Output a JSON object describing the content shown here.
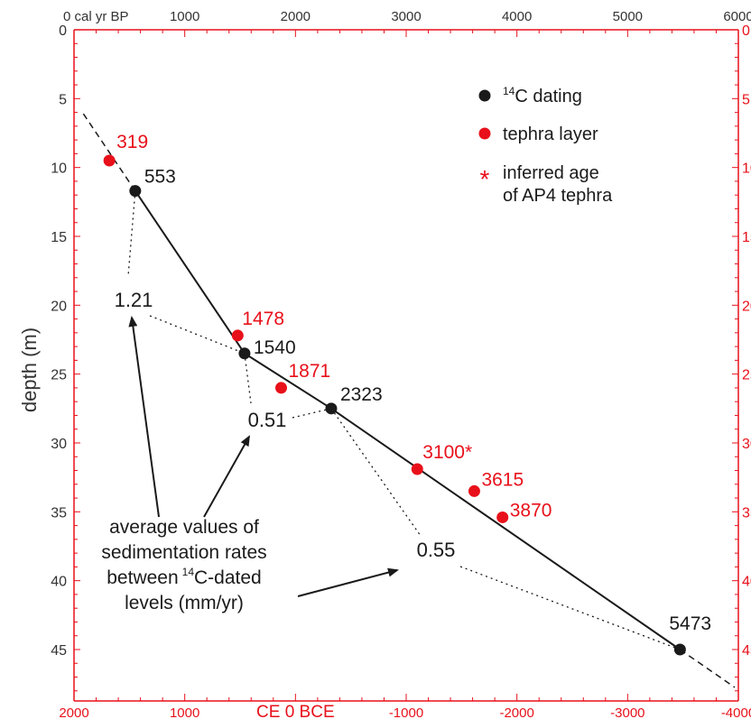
{
  "colors": {
    "black": "#1a1a1a",
    "red": "#e8101a"
  },
  "chart_data": {
    "type": "scatter",
    "y_axis": {
      "label": "depth (m)",
      "range": [
        0,
        48
      ],
      "ticks": [
        0,
        5,
        10,
        15,
        20,
        25,
        30,
        35,
        40,
        45
      ],
      "inverted": true
    },
    "x_top_axis": {
      "range": [
        0,
        6000
      ],
      "ticks": [
        0,
        1000,
        2000,
        3000,
        4000,
        5000,
        6000
      ],
      "tick_labels": [
        "0 cal yr BP",
        "1000",
        "2000",
        "3000",
        "4000",
        "5000",
        "6000"
      ]
    },
    "x_bottom_axis": {
      "range": [
        2000,
        -4000
      ],
      "ticks": [
        2000,
        1000,
        0,
        -1000,
        -2000,
        -3000,
        -4000
      ],
      "tick_labels": [
        "2000",
        "1000",
        "CE 0 BCE",
        "-1000",
        "-2000",
        "-3000",
        "-4000"
      ]
    },
    "series": [
      {
        "name": "14C dating",
        "color": "#1a1a1a",
        "points": [
          {
            "x": 553,
            "y": 11.7,
            "label": "553"
          },
          {
            "x": 1540,
            "y": 23.5,
            "label": "1540"
          },
          {
            "x": 2323,
            "y": 27.5,
            "label": "2323"
          },
          {
            "x": 5473,
            "y": 45.0,
            "label": "5473"
          }
        ]
      },
      {
        "name": "tephra layer",
        "color": "#e8101a",
        "points": [
          {
            "x": 319,
            "y": 9.5,
            "label": "319"
          },
          {
            "x": 1478,
            "y": 22.2,
            "label": "1478"
          },
          {
            "x": 1871,
            "y": 26.0,
            "label": "1871"
          },
          {
            "x": 3100,
            "y": 31.9,
            "label": "3100*"
          },
          {
            "x": 3615,
            "y": 33.5,
            "label": "3615"
          },
          {
            "x": 3870,
            "y": 35.4,
            "label": "3870"
          }
        ]
      }
    ],
    "sedimentation_rates": [
      "1.21",
      "0.51",
      "0.55"
    ],
    "legend": {
      "position": "top-right",
      "items": [
        "C dating",
        "tephra layer"
      ],
      "superscript": "14",
      "note_lines": [
        "inferred age",
        "of AP4 tephra"
      ]
    },
    "annotation_lines": [
      "average values of",
      "sedimentation rates",
      "between",
      "C-dated",
      "levels (mm/yr)"
    ],
    "annotation_superscript": "14"
  }
}
